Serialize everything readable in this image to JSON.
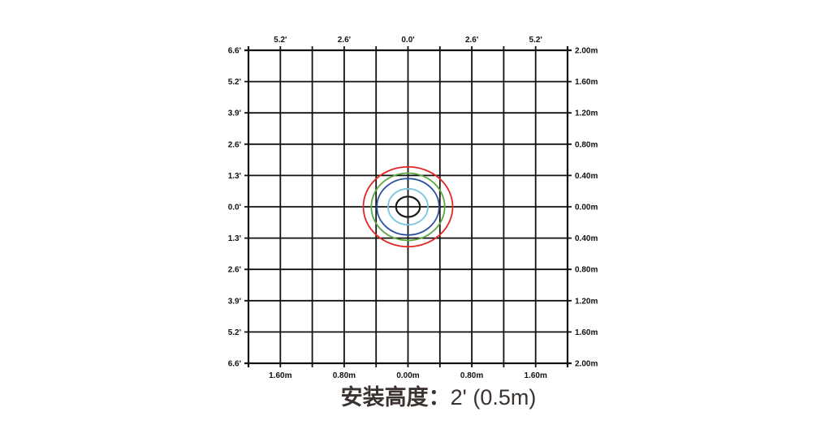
{
  "caption": {
    "label": "安装高度：",
    "value": "2' (0.5m)"
  },
  "chart_data": {
    "type": "scatter",
    "subtype": "sensor-coverage-ellipse-diagram",
    "title": "安装高度：2' (0.5m)",
    "grid": {
      "columns": 10,
      "rows": 10,
      "cell_size_m": 0.4,
      "line_color": "#111111",
      "grid_on": true
    },
    "x_range_m": [
      -2,
      2
    ],
    "y_range_m": [
      -2,
      2
    ],
    "axes": {
      "top": {
        "unit": "feet",
        "labels": [
          "5.2'",
          "2.6'",
          "0.0'",
          "2.6'",
          "5.2'"
        ],
        "line_positions": [
          1,
          3,
          5,
          7,
          9
        ]
      },
      "bottom": {
        "unit": "meters",
        "labels": [
          "1.60m",
          "0.80m",
          "0.00m",
          "0.80m",
          "1.60m"
        ],
        "line_positions": [
          1,
          3,
          5,
          7,
          9
        ]
      },
      "left": {
        "unit": "feet",
        "labels": [
          "6.6'",
          "5.2'",
          "3.9'",
          "2.6'",
          "1.3'",
          "0.0'",
          "1.3'",
          "2.6'",
          "3.9'",
          "5.2'",
          "6.6'"
        ],
        "line_positions": [
          0,
          1,
          2,
          3,
          4,
          5,
          6,
          7,
          8,
          9,
          10
        ]
      },
      "right": {
        "unit": "meters",
        "labels": [
          "2.00m",
          "1.60m",
          "1.20m",
          "0.80m",
          "0.40m",
          "0.00m",
          "0.40m",
          "0.80m",
          "1.20m",
          "1.60m",
          "2.00m"
        ],
        "line_positions": [
          0,
          1,
          2,
          3,
          4,
          5,
          6,
          7,
          8,
          9,
          10
        ]
      }
    },
    "ellipses": [
      {
        "name": "red",
        "color": "#e12725",
        "cx_m": 0,
        "cy_m": 0,
        "rx_m": 0.56,
        "ry_m": 0.51,
        "stroke_width": 1.8
      },
      {
        "name": "green",
        "color": "#5ea843",
        "cx_m": 0,
        "cy_m": 0,
        "rx_m": 0.46,
        "ry_m": 0.43,
        "stroke_width": 1.8
      },
      {
        "name": "blue",
        "color": "#2a4f9e",
        "cx_m": 0,
        "cy_m": 0,
        "rx_m": 0.39,
        "ry_m": 0.36,
        "stroke_width": 1.8
      },
      {
        "name": "light-blue",
        "color": "#7cc6de",
        "cx_m": 0,
        "cy_m": 0,
        "rx_m": 0.25,
        "ry_m": 0.23,
        "stroke_width": 1.8
      },
      {
        "name": "black",
        "color": "#1a1a1a",
        "cx_m": 0,
        "cy_m": 0,
        "rx_m": 0.15,
        "ry_m": 0.13,
        "stroke_width": 2.2
      }
    ]
  }
}
